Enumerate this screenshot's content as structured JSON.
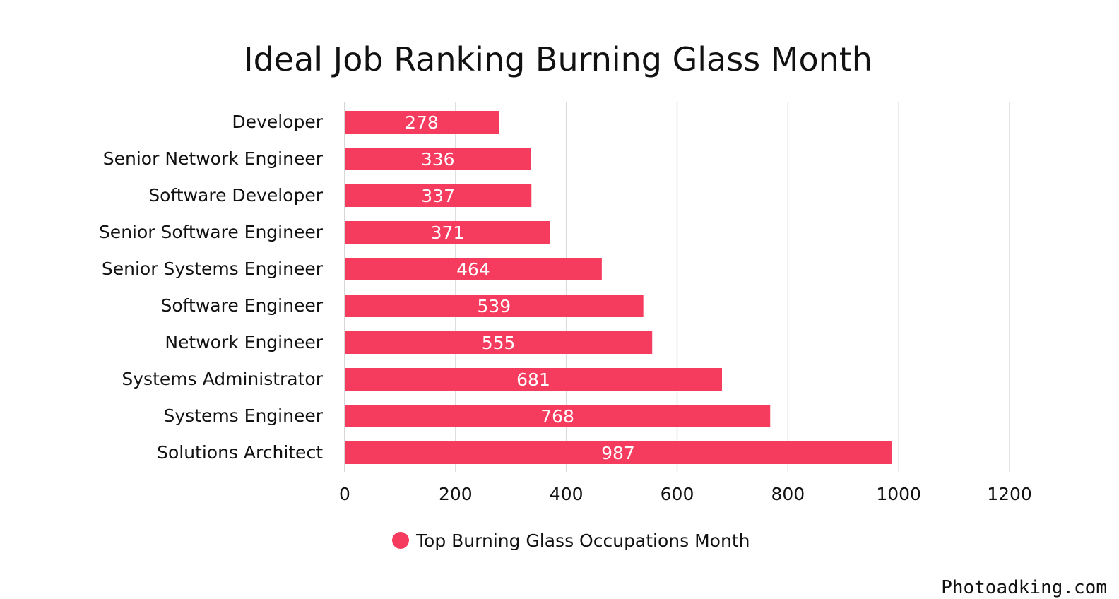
{
  "chart_data": {
    "type": "bar",
    "orientation": "horizontal",
    "title": "Ideal Job Ranking Burning Glass Month",
    "categories": [
      "Developer",
      "Senior Network Engineer",
      "Software Developer",
      "Senior Software Engineer",
      "Senior Systems Engineer",
      "Software Engineer",
      "Network Engineer",
      "Systems Administrator",
      "Systems Engineer",
      "Solutions Architect"
    ],
    "series": [
      {
        "name": "Top Burning Glass Occupations Month",
        "values": [
          278,
          336,
          337,
          371,
          464,
          539,
          555,
          681,
          768,
          987
        ],
        "color": "#f53c5e"
      }
    ],
    "xlim": [
      0,
      1200
    ],
    "xticks": [
      "0",
      "200",
      "400",
      "600",
      "800",
      "1000",
      "1200"
    ],
    "grid": true,
    "legend_position": "bottom-center",
    "xlabel": "",
    "ylabel": ""
  },
  "watermark": "Photoadking.com"
}
